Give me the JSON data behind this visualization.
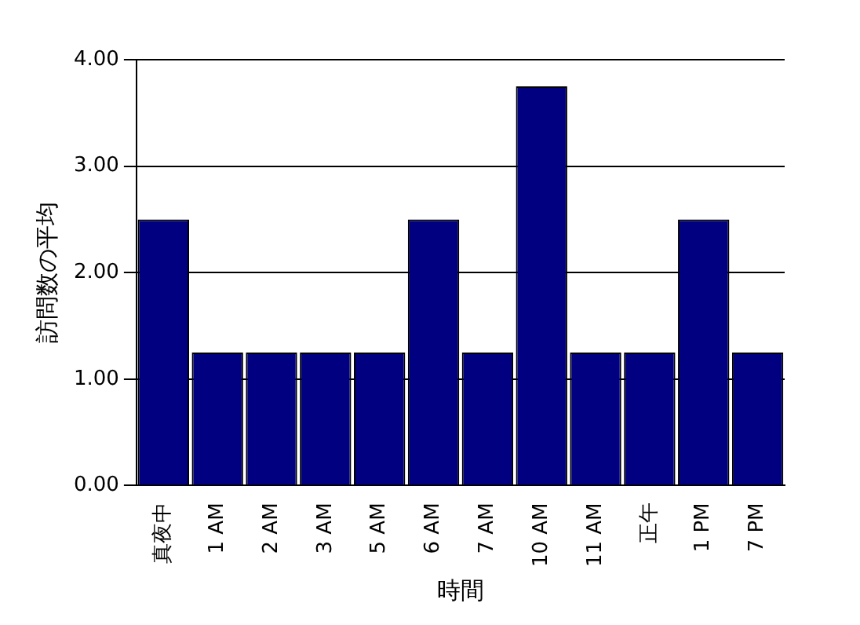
{
  "chart_data": {
    "type": "bar",
    "xlabel": "時間",
    "ylabel": "訪問数の平均",
    "categories": [
      "真夜中",
      "1 AM",
      "2 AM",
      "3 AM",
      "5 AM",
      "6 AM",
      "7 AM",
      "10 AM",
      "11 AM",
      "正午",
      "1 PM",
      "7 PM"
    ],
    "values": [
      2.5,
      1.25,
      1.25,
      1.25,
      1.25,
      2.5,
      1.25,
      3.75,
      1.25,
      1.25,
      2.5,
      1.25
    ],
    "color": "#000080",
    "ylim": [
      0,
      4
    ],
    "yticks": [
      {
        "value": 0,
        "label": "0.00"
      },
      {
        "value": 1,
        "label": "1.00"
      },
      {
        "value": 2,
        "label": "2.00"
      },
      {
        "value": 3,
        "label": "3.00"
      },
      {
        "value": 4,
        "label": "4.00"
      }
    ],
    "grid": "y",
    "legend": false
  }
}
